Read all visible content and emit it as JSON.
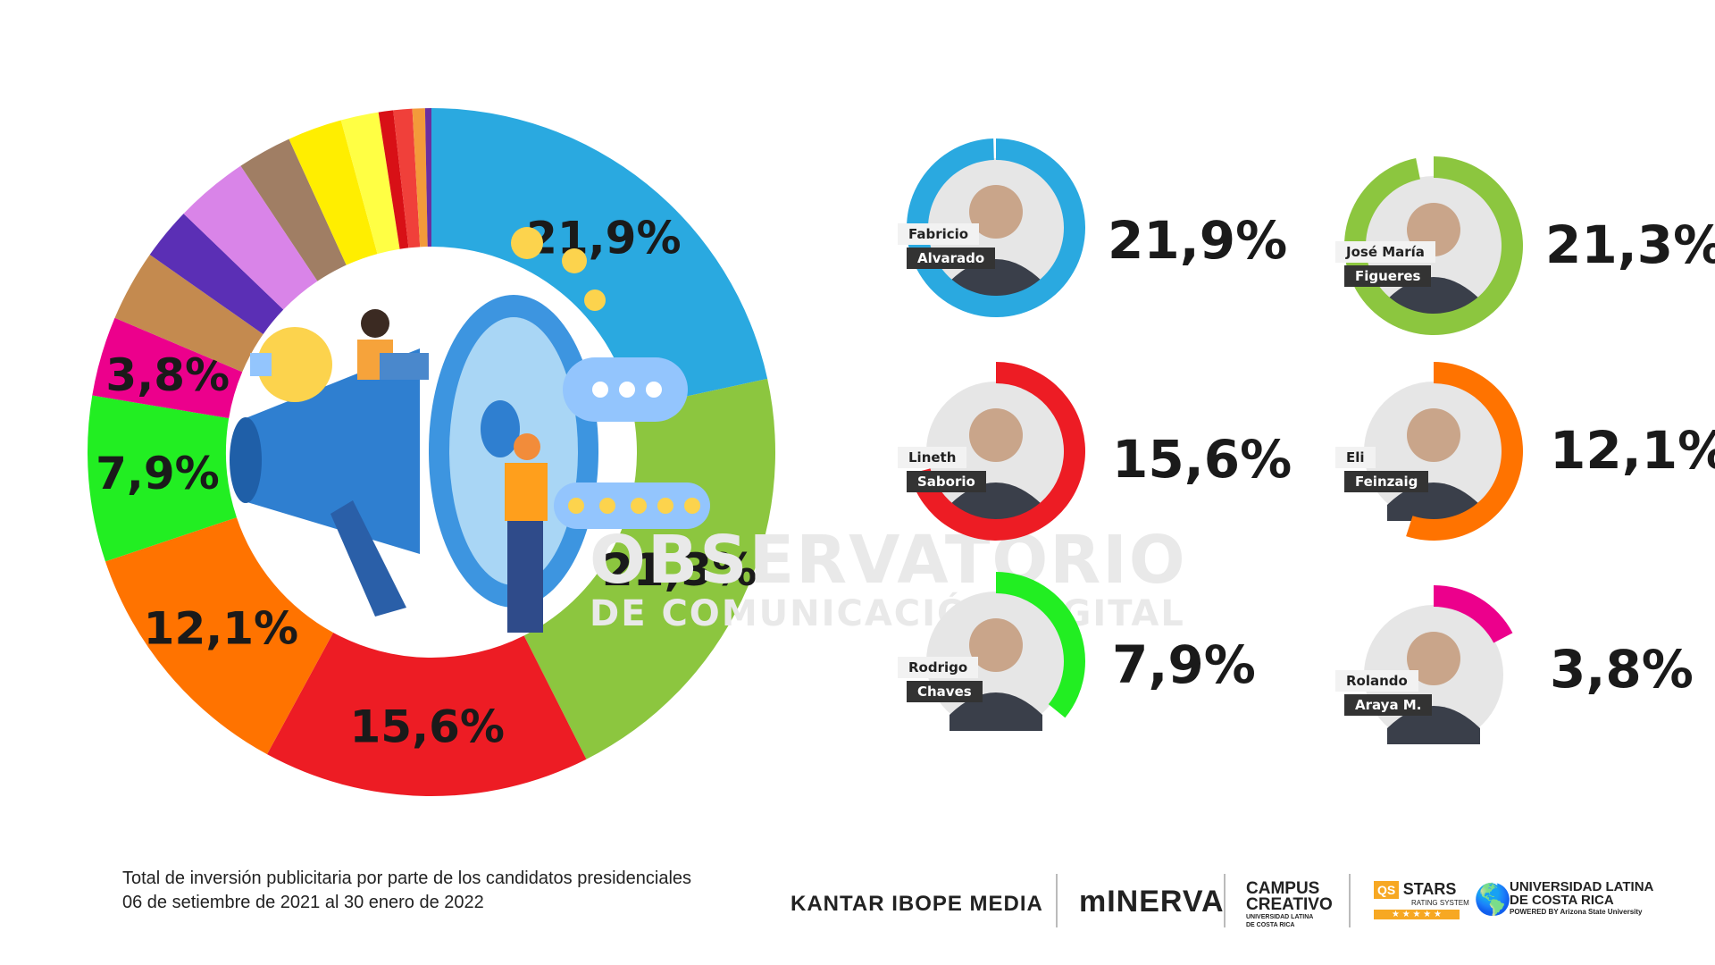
{
  "chart_data": {
    "type": "donut",
    "labels_shown": [
      "21,9%",
      "21,3%",
      "15,6%",
      "12,1%",
      "7,9%",
      "3,8%"
    ],
    "slices": [
      {
        "value": 21.9,
        "color": "#2aa9e0",
        "label": "21,9%"
      },
      {
        "value": 21.3,
        "color": "#8cc63f",
        "label": "21,3%"
      },
      {
        "value": 15.6,
        "color": "#ed1c24",
        "label": "15,6%"
      },
      {
        "value": 12.1,
        "color": "#ff7300",
        "label": "12,1%"
      },
      {
        "value": 7.9,
        "color": "#22ee22",
        "label": "7,9%"
      },
      {
        "value": 3.8,
        "color": "#ec008c",
        "label": "3,8%"
      },
      {
        "value": 3.4,
        "color": "#c48a4f",
        "label": ""
      },
      {
        "value": 2.5,
        "color": "#5b2fb5",
        "label": ""
      },
      {
        "value": 3.5,
        "color": "#d984e8",
        "label": ""
      },
      {
        "value": 2.6,
        "color": "#a07e64",
        "label": ""
      },
      {
        "value": 2.6,
        "color": "#ffee00",
        "label": ""
      },
      {
        "value": 1.8,
        "color": "#ffff44",
        "label": ""
      },
      {
        "value": 0.7,
        "color": "#d81016",
        "label": ""
      },
      {
        "value": 0.9,
        "color": "#f0403a",
        "label": ""
      },
      {
        "value": 0.6,
        "color": "#f39a3a",
        "label": ""
      },
      {
        "value": 0.3,
        "color": "#6a2fa0",
        "label": ""
      }
    ]
  },
  "candidates": [
    {
      "first": "Fabricio",
      "last": "Alvarado",
      "pct": "21,9%",
      "value": 21.9,
      "color": "#2aa9e0"
    },
    {
      "first": "José María",
      "last": "Figueres",
      "pct": "21,3%",
      "value": 21.3,
      "color": "#8cc63f"
    },
    {
      "first": "Lineth",
      "last": "Saborio",
      "pct": "15,6%",
      "value": 15.6,
      "color": "#ed1c24"
    },
    {
      "first": "Eli",
      "last": "Feinzaig",
      "pct": "12,1%",
      "value": 12.1,
      "color": "#ff7300"
    },
    {
      "first": "Rodrigo",
      "last": "Chaves",
      "pct": "7,9%",
      "value": 7.9,
      "color": "#22ee22"
    },
    {
      "first": "Rolando",
      "last": "Araya M.",
      "pct": "3,8%",
      "value": 3.8,
      "color": "#ec008c"
    }
  ],
  "watermark": {
    "line1": "OBSERVATORIO",
    "line2": "DE COMUNICACIÓN DIGITAL"
  },
  "footer": {
    "line1": "Total de inversión publicitaria por parte de los candidatos presidenciales",
    "line2": "06 de setiembre de 2021 al 30 enero de 2022"
  },
  "logos": {
    "kantar": "KANTAR IBOPE MEDIA",
    "minerva": "mINERVA",
    "campus1": "CAMPUS",
    "campus2": "CREATIVO",
    "campus3": "UNIVERSIDAD LATINA DE COSTA RICA",
    "qs1": "QS",
    "qs2": "STARS",
    "qs3": "RATING SYSTEM",
    "ulat1": "UNIVERSIDAD LATINA",
    "ulat2": "DE COSTA RICA",
    "ulat3": "POWERED BY Arizona State University"
  }
}
